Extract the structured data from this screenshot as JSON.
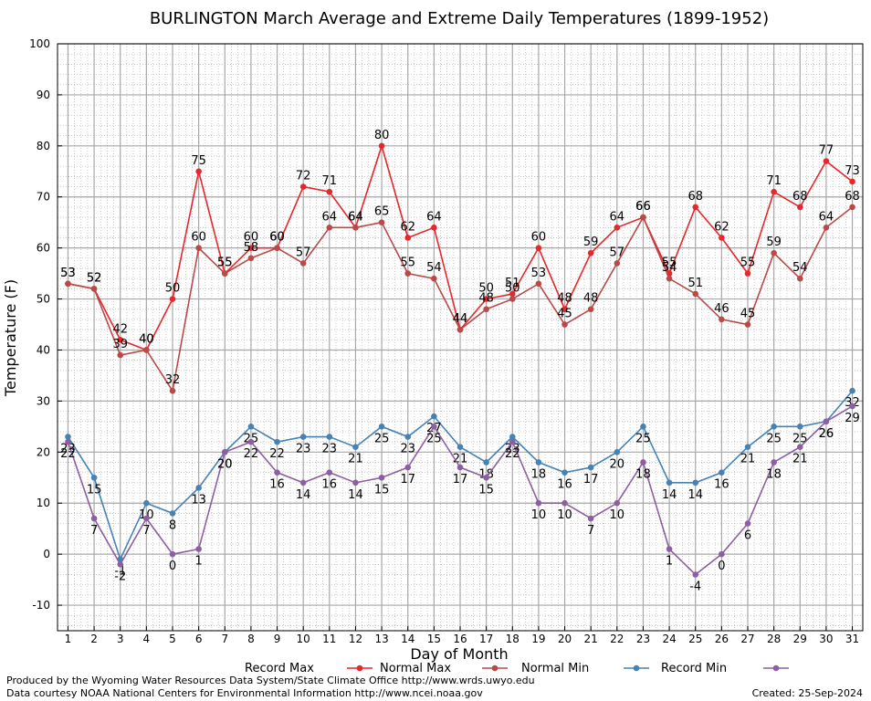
{
  "footer": {
    "produced": "Produced by the Wyoming Water Resources Data System/State Climate Office http://www.wrds.uwyo.edu",
    "courtesy": "Data courtesy NOAA National Centers for Environmental Information http://www.ncei.noaa.gov",
    "created": "Created:  25-Sep-2024"
  },
  "chart_data": {
    "type": "line",
    "title": "BURLINGTON March Average and Extreme Daily Temperatures (1899-1952)",
    "xlabel": "Day of Month",
    "ylabel": "Temperature (F)",
    "xlim": [
      0.6,
      31.4
    ],
    "ylim": [
      -15,
      100
    ],
    "yticks": [
      -10,
      0,
      10,
      20,
      30,
      40,
      50,
      60,
      70,
      80,
      90,
      100
    ],
    "x": [
      1,
      2,
      3,
      4,
      5,
      6,
      7,
      8,
      9,
      10,
      11,
      12,
      13,
      14,
      15,
      16,
      17,
      18,
      19,
      20,
      21,
      22,
      23,
      24,
      25,
      26,
      27,
      28,
      29,
      30,
      31
    ],
    "grid": true,
    "legend_position": "bottom",
    "series": [
      {
        "name": "Record Max",
        "color": "#e8262b",
        "label_pos": "above",
        "values": [
          53,
          52,
          42,
          40,
          50,
          75,
          55,
          60,
          60,
          72,
          71,
          64,
          80,
          62,
          64,
          44,
          50,
          51,
          60,
          48,
          59,
          64,
          66,
          55,
          68,
          62,
          55,
          71,
          68,
          77,
          73
        ]
      },
      {
        "name": "Normal Max",
        "color": "#b94a48",
        "label_pos": "above",
        "values": [
          53,
          52,
          39,
          40,
          32,
          60,
          55,
          58,
          60,
          57,
          64,
          64,
          65,
          55,
          54,
          44,
          48,
          50,
          53,
          45,
          48,
          57,
          66,
          54,
          51,
          46,
          45,
          59,
          54,
          64,
          68
        ]
      },
      {
        "name": "Normal Min",
        "color": "#4682b4",
        "label_pos": "below",
        "values": [
          23,
          15,
          -1,
          10,
          8,
          13,
          20,
          25,
          22,
          23,
          23,
          21,
          25,
          23,
          27,
          21,
          18,
          23,
          18,
          16,
          17,
          20,
          25,
          14,
          14,
          16,
          21,
          25,
          25,
          26,
          32
        ]
      },
      {
        "name": "Record Min",
        "color": "#8e5ea2",
        "label_pos": "below",
        "values": [
          22,
          7,
          -2,
          7,
          0,
          1,
          20,
          22,
          16,
          14,
          16,
          14,
          15,
          17,
          25,
          17,
          15,
          22,
          10,
          10,
          7,
          10,
          18,
          1,
          -4,
          0,
          6,
          18,
          21,
          26,
          29
        ]
      }
    ]
  }
}
